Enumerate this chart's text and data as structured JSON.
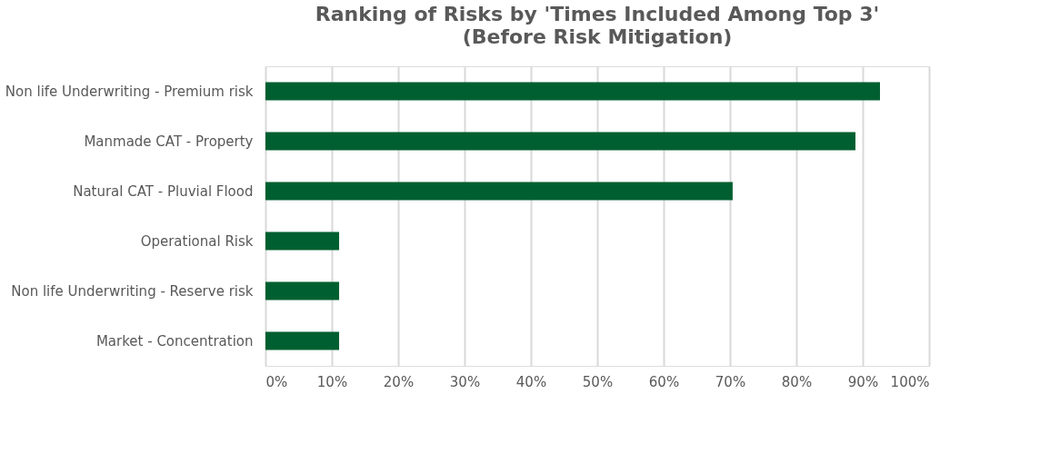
{
  "chart_data": {
    "type": "bar",
    "orientation": "horizontal",
    "title": "Ranking of Risks by 'Times Included Among Top 3'",
    "subtitle": "(Before Risk Mitigation)",
    "categories": [
      "Non life Underwriting - Premium risk",
      "Manmade CAT - Property",
      "Natural CAT - Pluvial Flood",
      "Operational Risk",
      "Non life Underwriting - Reserve risk",
      "Market - Concentration"
    ],
    "values": [
      92.6,
      88.9,
      70.4,
      11.1,
      11.1,
      11.1
    ],
    "color": "#005f30",
    "xlim": [
      0,
      100
    ],
    "xticks": [
      {
        "value": 0,
        "label": "0%"
      },
      {
        "value": 10,
        "label": "10%"
      },
      {
        "value": 20,
        "label": "20%"
      },
      {
        "value": 30,
        "label": "30%"
      },
      {
        "value": 40,
        "label": "40%"
      },
      {
        "value": 50,
        "label": "50%"
      },
      {
        "value": 60,
        "label": "60%"
      },
      {
        "value": 70,
        "label": "70%"
      },
      {
        "value": 80,
        "label": "80%"
      },
      {
        "value": 90,
        "label": "90%"
      },
      {
        "value": 100,
        "label": "100%"
      }
    ],
    "grid": "x"
  }
}
